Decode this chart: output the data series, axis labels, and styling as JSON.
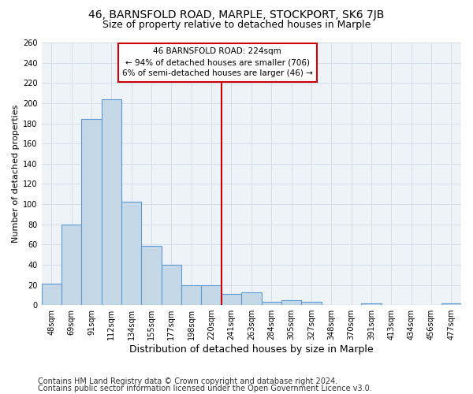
{
  "title1": "46, BARNSFOLD ROAD, MARPLE, STOCKPORT, SK6 7JB",
  "title2": "Size of property relative to detached houses in Marple",
  "xlabel": "Distribution of detached houses by size in Marple",
  "ylabel": "Number of detached properties",
  "footer1": "Contains HM Land Registry data © Crown copyright and database right 2024.",
  "footer2": "Contains public sector information licensed under the Open Government Licence v3.0.",
  "categories": [
    "48sqm",
    "69sqm",
    "91sqm",
    "112sqm",
    "134sqm",
    "155sqm",
    "177sqm",
    "198sqm",
    "220sqm",
    "241sqm",
    "263sqm",
    "284sqm",
    "305sqm",
    "327sqm",
    "348sqm",
    "370sqm",
    "391sqm",
    "413sqm",
    "434sqm",
    "456sqm",
    "477sqm"
  ],
  "values": [
    21,
    80,
    184,
    204,
    102,
    59,
    40,
    20,
    20,
    11,
    13,
    3,
    5,
    3,
    0,
    0,
    2,
    0,
    0,
    0,
    2
  ],
  "bar_color": "#c5d8e8",
  "bar_edge_color": "#5b9bd5",
  "vline_x": 8.5,
  "vline_color": "#cc0000",
  "annotation_line1": "46 BARNSFOLD ROAD: 224sqm",
  "annotation_line2": "← 94% of detached houses are smaller (706)",
  "annotation_line3": "6% of semi-detached houses are larger (46) →",
  "annotation_box_color": "#ffffff",
  "annotation_box_edge_color": "#cc0000",
  "ylim": [
    0,
    260
  ],
  "yticks": [
    0,
    20,
    40,
    60,
    80,
    100,
    120,
    140,
    160,
    180,
    200,
    220,
    240,
    260
  ],
  "bg_color": "#eef3f8",
  "grid_color": "#d0dce8",
  "title1_fontsize": 10,
  "title2_fontsize": 9,
  "xlabel_fontsize": 9,
  "ylabel_fontsize": 8,
  "tick_fontsize": 7,
  "footer_fontsize": 7,
  "annotation_fontsize": 7.5
}
